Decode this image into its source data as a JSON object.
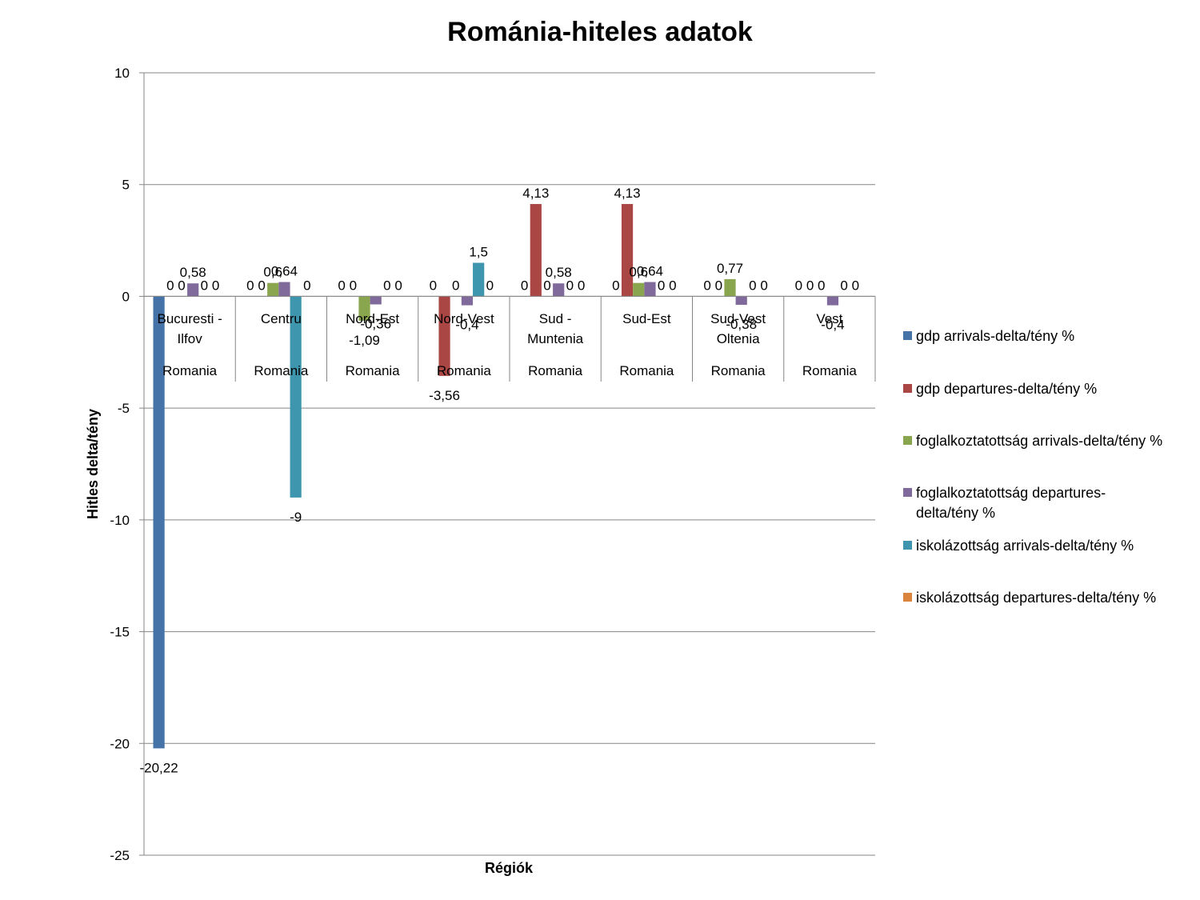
{
  "chart_data": {
    "type": "bar",
    "title": "Románia-hiteles adatok",
    "xlabel": "Régiók",
    "ylabel": "Hitles delta/tény",
    "ylim": [
      -25,
      10
    ],
    "yticks": [
      10,
      5,
      0,
      -5,
      -10,
      -15,
      -20,
      -25
    ],
    "ytick_labels": [
      "10",
      "5",
      "0",
      "-5",
      "-10",
      "-15",
      "-20",
      "-25"
    ],
    "grid": true,
    "legend_position": "right",
    "categories": [
      {
        "name": "Bucuresti - Ilfov",
        "lines": [
          "Bucuresti -",
          "Ilfov"
        ],
        "group": "Romania"
      },
      {
        "name": "Centru",
        "lines": [
          "Centru"
        ],
        "group": "Romania"
      },
      {
        "name": "Nord-Est",
        "lines": [
          "Nord-Est"
        ],
        "group": "Romania"
      },
      {
        "name": "Nord-Vest",
        "lines": [
          "Nord-Vest"
        ],
        "group": "Romania"
      },
      {
        "name": "Sud - Muntenia",
        "lines": [
          "Sud -",
          "Muntenia"
        ],
        "group": "Romania"
      },
      {
        "name": "Sud-Est",
        "lines": [
          "Sud-Est"
        ],
        "group": "Romania"
      },
      {
        "name": "Sud-Vest Oltenia",
        "lines": [
          "Sud-Vest",
          "Oltenia"
        ],
        "group": "Romania"
      },
      {
        "name": "Vest",
        "lines": [
          "Vest"
        ],
        "group": "Romania"
      }
    ],
    "series": [
      {
        "name": "gdp arrivals-delta/tény %",
        "legend_lines": [
          "gdp arrivals-delta/tény %"
        ],
        "color": "#4572A7",
        "values": [
          -20.22,
          0,
          0,
          0,
          0,
          0,
          0,
          0
        ],
        "labels": [
          "-20,22",
          "0",
          "0",
          "0",
          "0",
          "0",
          "0",
          "0"
        ]
      },
      {
        "name": "gdp departures-delta/tény %",
        "legend_lines": [
          "gdp departures-delta/tény %"
        ],
        "color": "#AA4643",
        "values": [
          0,
          0,
          0,
          -3.56,
          4.13,
          4.13,
          0,
          0
        ],
        "labels": [
          "0",
          "0",
          "0",
          "-3,56",
          "4,13",
          "4,13",
          "0",
          "0"
        ]
      },
      {
        "name": "foglalkoztatottság arrivals-delta/tény %",
        "legend_lines": [
          "foglalkoztatottság arrivals-delta/tény %"
        ],
        "color": "#89A54E",
        "values": [
          0,
          0.6,
          -1.09,
          0,
          0,
          0.6,
          0.77,
          0
        ],
        "labels": [
          "0",
          "0,6",
          "-1,09",
          "0",
          "0",
          "0,6",
          "0,77",
          "0"
        ]
      },
      {
        "name": "foglalkoztatottság departures-delta/tény %",
        "legend_lines": [
          "foglalkoztatottság departures-",
          "delta/tény %"
        ],
        "color": "#80699B",
        "values": [
          0.58,
          0.64,
          -0.36,
          -0.4,
          0.58,
          0.64,
          -0.38,
          -0.4
        ],
        "labels": [
          "0,58",
          "0,64",
          "-0,36",
          "-0,4",
          "0,58",
          "0,64",
          "-0,38",
          "-0,4"
        ]
      },
      {
        "name": "iskolázottság arrivals-delta/tény %",
        "legend_lines": [
          "iskolázottság arrivals-delta/tény %"
        ],
        "color": "#3D96AE",
        "values": [
          0,
          -9,
          0,
          1.5,
          0,
          0,
          0,
          0
        ],
        "labels": [
          "0",
          "-9",
          "0",
          "1,5",
          "0",
          "0",
          "0",
          "0"
        ]
      },
      {
        "name": "iskolázottság departures-delta/tény %",
        "legend_lines": [
          "iskolázottság departures-delta/tény %"
        ],
        "color": "#DB843D",
        "values": [
          0,
          0,
          0,
          0,
          0,
          0,
          0,
          0
        ],
        "labels": [
          "0",
          "0",
          "0",
          "0",
          "0",
          "0",
          "0",
          "0"
        ]
      }
    ]
  }
}
